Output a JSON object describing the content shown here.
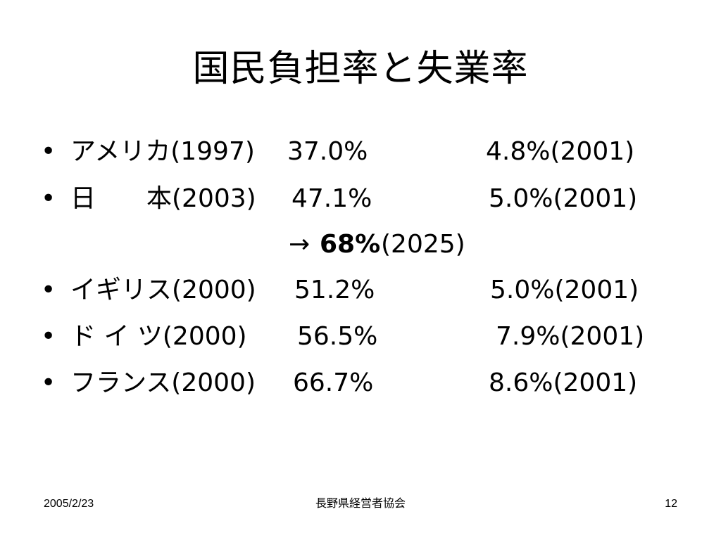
{
  "slide": {
    "title": "国民負担率と失業率",
    "bullet_char": "•",
    "rows": [
      {
        "country": "アメリカ(1997)",
        "burden": "37.0%",
        "unemployment": "4.8%(2001)"
      },
      {
        "country": "日　　本(2003)",
        "burden": "47.1%",
        "unemployment": "5.0%(2001)"
      },
      {
        "arrow": "→",
        "projection_value": "68%",
        "projection_year": "(2025)"
      },
      {
        "country": "イギリス(2000)",
        "burden": "51.2%",
        "unemployment": "5.0%(2001)"
      },
      {
        "country": "ド イ ツ(2000)",
        "burden": "56.5%",
        "unemployment": "7.9%(2001)"
      },
      {
        "country": "フランス(2000)",
        "burden": "66.7%",
        "unemployment": "8.6%(2001)"
      }
    ]
  },
  "footer": {
    "date": "2005/2/23",
    "organization": "長野県経営者協会",
    "page_number": "12"
  }
}
